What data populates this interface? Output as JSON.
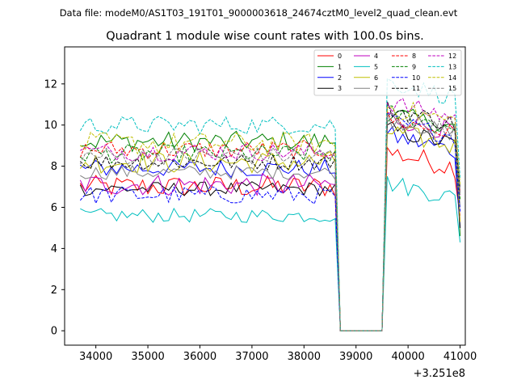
{
  "figure": {
    "suptitle": "Data file: modeM0/AS1T03_191T01_9000003618_24674cztM0_level2_quad_clean.evt",
    "title": "Quadrant 1 module wise count rates with 100.0s bins.",
    "offset_text": "+3.251e8"
  },
  "chart_data": {
    "type": "line",
    "title": "Quadrant 1 module wise count rates with 100.0s bins.",
    "xlabel": "",
    "ylabel": "",
    "x_offset": 325100000,
    "xlim": [
      33400,
      41100
    ],
    "ylim": [
      -0.7,
      13.8
    ],
    "xticks": [
      34000,
      35000,
      36000,
      37000,
      38000,
      39000,
      40000,
      41000
    ],
    "yticks": [
      0,
      2,
      4,
      6,
      8,
      10,
      12
    ],
    "xtick_labels": [
      "34000",
      "35000",
      "36000",
      "37000",
      "38000",
      "39000",
      "40000",
      "41000"
    ],
    "ytick_labels": [
      "0",
      "2",
      "4",
      "6",
      "8",
      "10",
      "12"
    ],
    "segments": {
      "first": {
        "start": 33700,
        "end": 38600,
        "step": 100
      },
      "gap": {
        "start": 38700,
        "end": 39500
      },
      "second": {
        "start": 39600,
        "end": 41000,
        "step": 100
      }
    },
    "legend_position": "upper right, 4 columns",
    "series": [
      {
        "name": "0",
        "color": "#ff0000",
        "dash": false,
        "level1": 7.0,
        "amp1": 0.55,
        "level2": 8.3,
        "amp2": 0.55,
        "end": 5.6
      },
      {
        "name": "1",
        "color": "#008000",
        "dash": false,
        "level1": 9.2,
        "amp1": 0.5,
        "level2": 10.2,
        "amp2": 0.45,
        "end": 4.6
      },
      {
        "name": "2",
        "color": "#0000ff",
        "dash": false,
        "level1": 7.9,
        "amp1": 0.45,
        "level2": 9.1,
        "amp2": 0.5,
        "end": 5.0
      },
      {
        "name": "3",
        "color": "#000000",
        "dash": false,
        "level1": 6.9,
        "amp1": 0.35,
        "level2": 9.4,
        "amp2": 0.45,
        "end": 5.0
      },
      {
        "name": "4",
        "color": "#bf00bf",
        "dash": false,
        "level1": 7.1,
        "amp1": 0.55,
        "level2": 10.0,
        "amp2": 0.5,
        "end": 5.3
      },
      {
        "name": "5",
        "color": "#00bfbf",
        "dash": false,
        "level1": 5.6,
        "amp1": 0.35,
        "level2": 6.8,
        "amp2": 0.45,
        "end": 4.3
      },
      {
        "name": "6",
        "color": "#bfbf00",
        "dash": false,
        "level1": 8.2,
        "amp1": 0.55,
        "level2": 9.3,
        "amp2": 0.5,
        "end": 5.3
      },
      {
        "name": "7",
        "color": "#808080",
        "dash": false,
        "level1": 7.7,
        "amp1": 0.35,
        "level2": 9.9,
        "amp2": 0.4,
        "end": 6.0
      },
      {
        "name": "8",
        "color": "#ff0000",
        "dash": true,
        "level1": 8.8,
        "amp1": 0.45,
        "level2": 9.9,
        "amp2": 0.45,
        "end": 6.7
      },
      {
        "name": "9",
        "color": "#008000",
        "dash": true,
        "level1": 8.6,
        "amp1": 0.45,
        "level2": 10.2,
        "amp2": 0.45,
        "end": 6.4
      },
      {
        "name": "10",
        "color": "#0000ff",
        "dash": true,
        "level1": 6.6,
        "amp1": 0.45,
        "level2": 9.8,
        "amp2": 0.45,
        "end": 5.8
      },
      {
        "name": "11",
        "color": "#000000",
        "dash": true,
        "level1": 8.2,
        "amp1": 0.4,
        "level2": 10.4,
        "amp2": 0.45,
        "end": 6.9
      },
      {
        "name": "12",
        "color": "#bf00bf",
        "dash": true,
        "level1": 8.7,
        "amp1": 0.45,
        "level2": 10.7,
        "amp2": 0.45,
        "end": 6.6
      },
      {
        "name": "13",
        "color": "#00bfbf",
        "dash": true,
        "level1": 10.0,
        "amp1": 0.45,
        "level2": 11.7,
        "amp2": 0.45,
        "end": 7.4
      },
      {
        "name": "14",
        "color": "#bfbf00",
        "dash": true,
        "level1": 9.1,
        "amp1": 0.55,
        "level2": 10.5,
        "amp2": 0.5,
        "end": 7.1
      },
      {
        "name": "15",
        "color": "#808080",
        "dash": true,
        "level1": 8.5,
        "amp1": 0.45,
        "level2": 10.0,
        "amp2": 0.45,
        "end": 6.7
      }
    ]
  }
}
